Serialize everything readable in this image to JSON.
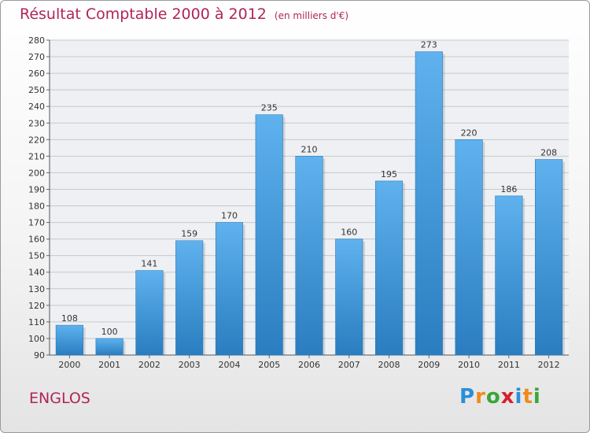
{
  "header": {
    "title": "Résultat Comptable 2000 à 2012",
    "subtitle": "(en milliers d'€)"
  },
  "footer": {
    "town": "ENGLOS",
    "logo": {
      "letters": [
        "P",
        "r",
        "o",
        "x",
        "i",
        "t",
        "i"
      ],
      "colors": [
        "#2a8fd8",
        "#f08a1c",
        "#3aa639",
        "#d6202a",
        "#2a8fd8",
        "#f08a1c",
        "#3aa639"
      ]
    }
  },
  "colors": {
    "bar_top": "#5fb2ee",
    "bar_bottom": "#2a7dbf",
    "grid": "#c8c8c8",
    "plot_bg": "#eef0f3",
    "accent": "#b0245a"
  },
  "chart_data": {
    "type": "bar",
    "title": "Résultat Comptable 2000 à 2012",
    "subtitle": "(en milliers d'€)",
    "xlabel": "",
    "ylabel": "",
    "categories": [
      "2000",
      "2001",
      "2002",
      "2003",
      "2004",
      "2005",
      "2006",
      "2007",
      "2008",
      "2009",
      "2010",
      "2011",
      "2012"
    ],
    "values": [
      108,
      100,
      141,
      159,
      170,
      235,
      210,
      160,
      195,
      273,
      220,
      186,
      208
    ],
    "ylim": [
      90,
      280
    ],
    "ytick_step": 10,
    "grid": true
  }
}
